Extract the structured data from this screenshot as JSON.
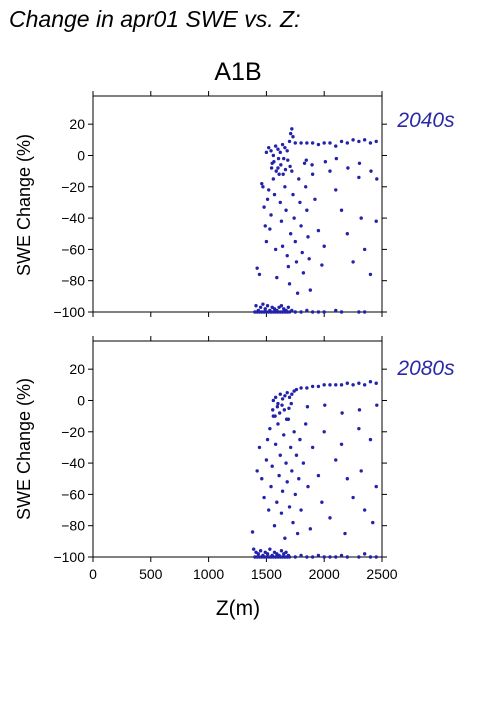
{
  "figure": {
    "title": "Change in apr01 SWE vs. Z:",
    "scenario": "A1B",
    "point_color": "#2222aa"
  },
  "chart_data": [
    {
      "type": "scatter",
      "period": "2040s",
      "ylabel": "SWE Change (%)",
      "xlabel": "",
      "xlim": [
        0,
        2500
      ],
      "ylim": [
        -100,
        38
      ],
      "yticks": [
        20,
        0,
        -20,
        -40,
        -60,
        -80,
        -100
      ],
      "xticks": [
        0,
        500,
        1000,
        1500,
        2000,
        2500
      ],
      "points": [
        [
          1400,
          -100
        ],
        [
          1410,
          -96
        ],
        [
          1420,
          -100
        ],
        [
          1430,
          -99
        ],
        [
          1440,
          -100
        ],
        [
          1450,
          -97
        ],
        [
          1460,
          -100
        ],
        [
          1470,
          -95
        ],
        [
          1480,
          -100
        ],
        [
          1490,
          -98
        ],
        [
          1500,
          -100
        ],
        [
          1510,
          -96
        ],
        [
          1520,
          -100
        ],
        [
          1530,
          -99
        ],
        [
          1540,
          -100
        ],
        [
          1550,
          -97
        ],
        [
          1560,
          -100
        ],
        [
          1570,
          -98
        ],
        [
          1580,
          -100
        ],
        [
          1590,
          -99
        ],
        [
          1600,
          -100
        ],
        [
          1610,
          -97
        ],
        [
          1620,
          -100
        ],
        [
          1630,
          -96
        ],
        [
          1640,
          -100
        ],
        [
          1650,
          -98
        ],
        [
          1660,
          -100
        ],
        [
          1670,
          -99
        ],
        [
          1680,
          -100
        ],
        [
          1690,
          -97
        ],
        [
          1700,
          -100
        ],
        [
          1720,
          -99
        ],
        [
          1750,
          -100
        ],
        [
          1800,
          -100
        ],
        [
          1850,
          -99
        ],
        [
          1900,
          -100
        ],
        [
          1950,
          -100
        ],
        [
          2000,
          -100
        ],
        [
          2100,
          -99
        ],
        [
          2150,
          -100
        ],
        [
          2300,
          -100
        ],
        [
          2350,
          -100
        ],
        [
          1420,
          -72
        ],
        [
          1440,
          -76
        ],
        [
          1460,
          -18
        ],
        [
          1470,
          -20
        ],
        [
          1480,
          -33
        ],
        [
          1490,
          -45
        ],
        [
          1500,
          -55
        ],
        [
          1510,
          -28
        ],
        [
          1520,
          -22
        ],
        [
          1530,
          -47
        ],
        [
          1540,
          -38
        ],
        [
          1550,
          -5
        ],
        [
          1560,
          -15
        ],
        [
          1570,
          -25
        ],
        [
          1580,
          -60
        ],
        [
          1590,
          -78
        ],
        [
          1600,
          -8
        ],
        [
          1610,
          -12
        ],
        [
          1620,
          -30
        ],
        [
          1630,
          -42
        ],
        [
          1640,
          -58
        ],
        [
          1650,
          -2
        ],
        [
          1660,
          -20
        ],
        [
          1670,
          -35
        ],
        [
          1680,
          -64
        ],
        [
          1690,
          -71
        ],
        [
          1700,
          -82
        ],
        [
          1710,
          -50
        ],
        [
          1720,
          -10
        ],
        [
          1730,
          -25
        ],
        [
          1740,
          -40
        ],
        [
          1750,
          -55
        ],
        [
          1760,
          -68
        ],
        [
          1770,
          -88
        ],
        [
          1780,
          -15
        ],
        [
          1790,
          -30
        ],
        [
          1800,
          -45
        ],
        [
          1810,
          -62
        ],
        [
          1820,
          -75
        ],
        [
          1830,
          -5
        ],
        [
          1840,
          -20
        ],
        [
          1850,
          -35
        ],
        [
          1860,
          -52
        ],
        [
          1870,
          -66
        ],
        [
          1880,
          -86
        ],
        [
          1900,
          -12
        ],
        [
          1920,
          -28
        ],
        [
          1950,
          -48
        ],
        [
          1980,
          -70
        ],
        [
          2000,
          -58
        ],
        [
          2050,
          -10
        ],
        [
          2100,
          -22
        ],
        [
          2150,
          -35
        ],
        [
          2200,
          -50
        ],
        [
          2250,
          -68
        ],
        [
          2300,
          -14
        ],
        [
          2320,
          -40
        ],
        [
          2350,
          -60
        ],
        [
          2400,
          -76
        ],
        [
          2450,
          -42
        ],
        [
          1500,
          2
        ],
        [
          1520,
          5
        ],
        [
          1540,
          3
        ],
        [
          1560,
          0
        ],
        [
          1580,
          6
        ],
        [
          1600,
          4
        ],
        [
          1620,
          2
        ],
        [
          1640,
          7
        ],
        [
          1660,
          5
        ],
        [
          1680,
          3
        ],
        [
          1700,
          9
        ],
        [
          1710,
          14
        ],
        [
          1720,
          17
        ],
        [
          1730,
          12
        ],
        [
          1750,
          8
        ],
        [
          1800,
          8
        ],
        [
          1850,
          8
        ],
        [
          1900,
          8
        ],
        [
          1950,
          7
        ],
        [
          2000,
          8
        ],
        [
          2050,
          8
        ],
        [
          2100,
          6
        ],
        [
          2150,
          9
        ],
        [
          2200,
          8
        ],
        [
          2250,
          10
        ],
        [
          2300,
          9
        ],
        [
          2350,
          10
        ],
        [
          2400,
          8
        ],
        [
          2450,
          9
        ],
        [
          1545,
          -8
        ],
        [
          1565,
          -4
        ],
        [
          1585,
          -10
        ],
        [
          1605,
          -2
        ],
        [
          1625,
          -6
        ],
        [
          1645,
          -12
        ],
        [
          1665,
          -9
        ],
        [
          1685,
          -3
        ],
        [
          1705,
          -7
        ],
        [
          1845,
          -3
        ],
        [
          1895,
          -6
        ],
        [
          2010,
          -4
        ],
        [
          2105,
          -2
        ],
        [
          2205,
          -8
        ],
        [
          2305,
          -5
        ],
        [
          2405,
          -10
        ],
        [
          2455,
          -15
        ]
      ]
    },
    {
      "type": "scatter",
      "period": "2080s",
      "ylabel": "SWE Change (%)",
      "xlabel": "Z(m)",
      "xlim": [
        0,
        2500
      ],
      "ylim": [
        -100,
        38
      ],
      "yticks": [
        20,
        0,
        -20,
        -40,
        -60,
        -80,
        -100
      ],
      "xticks": [
        0,
        500,
        1000,
        1500,
        2000,
        2500
      ],
      "points": [
        [
          1380,
          -84
        ],
        [
          1390,
          -95
        ],
        [
          1400,
          -100
        ],
        [
          1410,
          -97
        ],
        [
          1420,
          -100
        ],
        [
          1430,
          -98
        ],
        [
          1440,
          -100
        ],
        [
          1450,
          -96
        ],
        [
          1460,
          -100
        ],
        [
          1470,
          -99
        ],
        [
          1480,
          -100
        ],
        [
          1490,
          -97
        ],
        [
          1500,
          -100
        ],
        [
          1510,
          -98
        ],
        [
          1520,
          -100
        ],
        [
          1530,
          -95
        ],
        [
          1540,
          -100
        ],
        [
          1550,
          -99
        ],
        [
          1560,
          -100
        ],
        [
          1570,
          -97
        ],
        [
          1580,
          -100
        ],
        [
          1590,
          -98
        ],
        [
          1600,
          -100
        ],
        [
          1610,
          -99
        ],
        [
          1620,
          -100
        ],
        [
          1630,
          -96
        ],
        [
          1640,
          -100
        ],
        [
          1650,
          -98
        ],
        [
          1660,
          -100
        ],
        [
          1670,
          -97
        ],
        [
          1680,
          -100
        ],
        [
          1690,
          -99
        ],
        [
          1700,
          -100
        ],
        [
          1750,
          -100
        ],
        [
          1800,
          -99
        ],
        [
          1850,
          -100
        ],
        [
          1900,
          -100
        ],
        [
          1950,
          -99
        ],
        [
          2000,
          -100
        ],
        [
          2050,
          -100
        ],
        [
          2100,
          -100
        ],
        [
          2150,
          -99
        ],
        [
          2200,
          -100
        ],
        [
          2300,
          -100
        ],
        [
          2350,
          -98
        ],
        [
          2400,
          -100
        ],
        [
          2450,
          -100
        ],
        [
          1420,
          -45
        ],
        [
          1440,
          -30
        ],
        [
          1460,
          -50
        ],
        [
          1480,
          -62
        ],
        [
          1500,
          -38
        ],
        [
          1510,
          -25
        ],
        [
          1520,
          -70
        ],
        [
          1530,
          -18
        ],
        [
          1540,
          -55
        ],
        [
          1550,
          -42
        ],
        [
          1560,
          -10
        ],
        [
          1570,
          -80
        ],
        [
          1580,
          -28
        ],
        [
          1590,
          -65
        ],
        [
          1600,
          -15
        ],
        [
          1610,
          -48
        ],
        [
          1620,
          -35
        ],
        [
          1630,
          -72
        ],
        [
          1640,
          -58
        ],
        [
          1650,
          -22
        ],
        [
          1660,
          -88
        ],
        [
          1670,
          -40
        ],
        [
          1680,
          -52
        ],
        [
          1690,
          -12
        ],
        [
          1700,
          -68
        ],
        [
          1710,
          -30
        ],
        [
          1720,
          -45
        ],
        [
          1730,
          -78
        ],
        [
          1740,
          -20
        ],
        [
          1750,
          -60
        ],
        [
          1760,
          -35
        ],
        [
          1770,
          -85
        ],
        [
          1780,
          -50
        ],
        [
          1790,
          -25
        ],
        [
          1800,
          -70
        ],
        [
          1820,
          -40
        ],
        [
          1840,
          -15
        ],
        [
          1860,
          -55
        ],
        [
          1880,
          -82
        ],
        [
          1900,
          -30
        ],
        [
          1950,
          -48
        ],
        [
          1980,
          -65
        ],
        [
          2000,
          -20
        ],
        [
          2050,
          -75
        ],
        [
          2100,
          -38
        ],
        [
          2150,
          -28
        ],
        [
          2180,
          -85
        ],
        [
          2200,
          -50
        ],
        [
          2250,
          -62
        ],
        [
          2300,
          -18
        ],
        [
          2320,
          -45
        ],
        [
          2350,
          -70
        ],
        [
          2400,
          -25
        ],
        [
          2420,
          -78
        ],
        [
          2450,
          -55
        ],
        [
          1560,
          0
        ],
        [
          1580,
          2
        ],
        [
          1600,
          -2
        ],
        [
          1620,
          4
        ],
        [
          1640,
          1
        ],
        [
          1660,
          3
        ],
        [
          1680,
          5
        ],
        [
          1700,
          2
        ],
        [
          1720,
          4
        ],
        [
          1740,
          6
        ],
        [
          1760,
          7
        ],
        [
          1800,
          8
        ],
        [
          1850,
          8
        ],
        [
          1900,
          9
        ],
        [
          1950,
          9
        ],
        [
          2000,
          10
        ],
        [
          2050,
          10
        ],
        [
          2100,
          10
        ],
        [
          2150,
          10
        ],
        [
          2200,
          11
        ],
        [
          2250,
          10
        ],
        [
          2300,
          11
        ],
        [
          2350,
          10
        ],
        [
          2400,
          12
        ],
        [
          2450,
          11
        ],
        [
          1555,
          -6
        ],
        [
          1575,
          -10
        ],
        [
          1595,
          -4
        ],
        [
          1615,
          -8
        ],
        [
          1635,
          -3
        ],
        [
          1655,
          -6
        ],
        [
          1675,
          -12
        ],
        [
          1695,
          -5
        ],
        [
          1715,
          -2
        ],
        [
          1855,
          -4
        ],
        [
          2005,
          -3
        ],
        [
          2155,
          -8
        ],
        [
          2305,
          -6
        ],
        [
          2455,
          -3
        ]
      ]
    }
  ]
}
